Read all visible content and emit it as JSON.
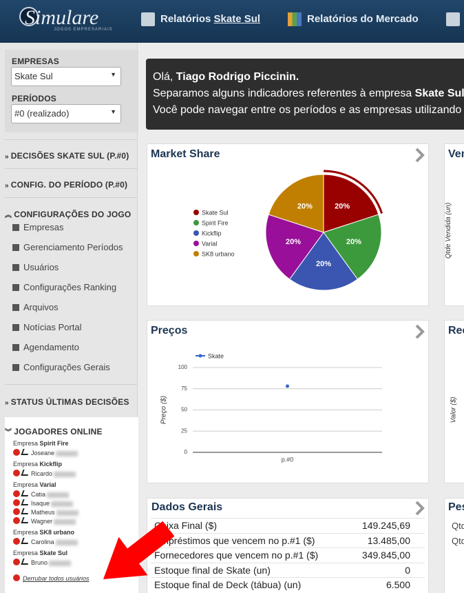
{
  "header": {
    "logo": "Simulare",
    "logo_subtitle": "JOGOS EMPRESARIAIS",
    "nav_company_reports": {
      "label": "Relatórios",
      "company": "Skate Sul"
    },
    "nav_market_reports": "Relatórios do Mercado"
  },
  "sidebar": {
    "empresas_label": "EMPRESAS",
    "empresa": "Skate Sul",
    "periodos_label": "PERÍODOS",
    "periodo": "#0 (realizado)",
    "decisoes": "DECISÕES SKATE SUL (P.#0)",
    "config_periodo": "CONFIG. DO PERÍODO (P.#0)",
    "config_jogo": "CONFIGURAÇÕES DO JOGO",
    "config_items": [
      "Empresas",
      "Gerenciamento Períodos",
      "Usuários",
      "Configurações Ranking",
      "Arquivos",
      "Notícias Portal",
      "Agendamento",
      "Configurações Gerais"
    ],
    "status": "STATUS ÚLTIMAS DECISÕES",
    "online": {
      "title": "JOGADORES ONLINE",
      "company_prefix": "Empresa",
      "groups": [
        {
          "company": "Spirit Fire",
          "players": [
            "Joseane"
          ]
        },
        {
          "company": "Kickflip",
          "players": [
            "Ricardo"
          ]
        },
        {
          "company": "Varial",
          "players": [
            "Catia",
            "Isaque",
            "Matheus",
            "Wagner"
          ]
        },
        {
          "company": "SK8 urbano",
          "players": [
            "Carolina"
          ]
        },
        {
          "company": "Skate Sul",
          "players": [
            "Bruno"
          ]
        }
      ],
      "drop_all": "Derrubar todos usuários"
    }
  },
  "message": {
    "greeting": "Olá,",
    "user": "Tiago Rodrigo Piccinin.",
    "line2": "Separamos alguns indicadores referentes à empresa",
    "company": "Skate Sul",
    "line3": "Você pode navegar entre os períodos e as empresas utilizando o"
  },
  "chart_data": [
    {
      "type": "pie",
      "title": "Market Share",
      "categories": [
        "Skate Sul",
        "Spirit Fire",
        "Kickflip",
        "Varial",
        "SK8 urbano"
      ],
      "values": [
        20,
        20,
        20,
        20,
        20
      ],
      "value_labels": [
        "20%",
        "20%",
        "20%",
        "20%",
        "20%"
      ],
      "colors": [
        "#990000",
        "#3c9a3c",
        "#3a56b0",
        "#990f99",
        "#c07f00"
      ]
    },
    {
      "type": "line",
      "title": "Preços",
      "y_label": "Preço ($)",
      "categories": [
        "p.#0"
      ],
      "series": [
        {
          "name": "Skate",
          "color": "#3366cc",
          "values": [
            78
          ]
        }
      ],
      "ylim": [
        0,
        100
      ],
      "yticks": [
        0,
        25,
        50,
        75,
        100
      ],
      "grid": true
    }
  ],
  "general_data": {
    "title": "Dados Gerais",
    "rows": [
      [
        "Caixa Final ($)",
        "149.245,69"
      ],
      [
        "Empréstimos que vencem no p.#1 ($)",
        "13.485,00"
      ],
      [
        "Fornecedores que vencem no p.#1 ($)",
        "349.845,00"
      ],
      [
        "Estoque final de Skate (un)",
        "0"
      ],
      [
        "Estoque final de Deck (tábua) (un)",
        "6.500"
      ]
    ]
  },
  "side_cards": {
    "sales_title": "Ven",
    "sales_axis": "Qtde Vendida (un)",
    "revenue_title": "Rec",
    "revenue_axis": "Valor ($)",
    "people_title": "Pes",
    "people_rows": [
      "Qtd",
      "Qtd"
    ]
  }
}
